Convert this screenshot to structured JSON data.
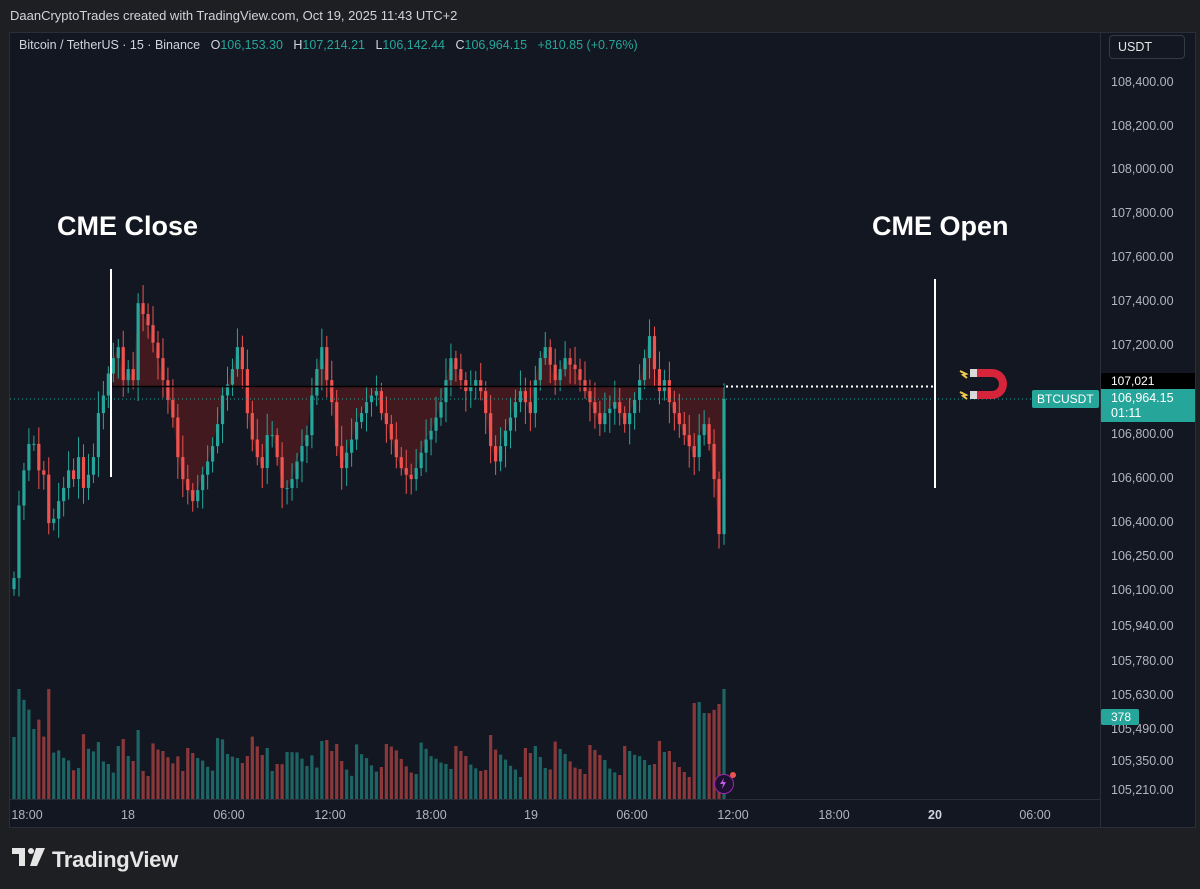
{
  "caption": "DaanCryptoTrades created with TradingView.com, Oct 19, 2025 11:43 UTC+2",
  "legend": {
    "symbol": "Bitcoin / TetherUS · 15 · Binance",
    "o_label": "O",
    "o": "106,153.30",
    "h_label": "H",
    "h": "107,214.21",
    "l_label": "L",
    "l": "106,142.44",
    "c_label": "C",
    "c": "106,964.15",
    "change": "+810.85 (+0.76%)"
  },
  "currency": "USDT",
  "annotations": {
    "left": "CME Close",
    "right": "CME Open"
  },
  "tags": {
    "cme_level": "107,021",
    "symbol_tag": "BTCUSDT",
    "last_price": "106,964.15",
    "countdown": "01:11",
    "volume": "378"
  },
  "footer": {
    "brand": "TradingView"
  },
  "colors": {
    "up": "#26a69a",
    "down": "#ef5350",
    "background": "#131722",
    "gap_fill": "#7a1c1c"
  },
  "icons": [
    "magnet-icon",
    "lightning-icon",
    "tradingview-logo-icon"
  ],
  "chart_data": {
    "type": "candlestick",
    "timeframe": "15",
    "y_ticks": [
      "108,400.00",
      "108,200.00",
      "108,000.00",
      "107,800.00",
      "107,600.00",
      "107,400.00",
      "107,200.00",
      "106,800.00",
      "106,600.00",
      "106,400.00",
      "106,250.00",
      "106,100.00",
      "105,940.00",
      "105,780.00",
      "105,630.00",
      "105,490.00",
      "105,350.00",
      "105,210.00"
    ],
    "x_ticks": [
      {
        "label": "18:00",
        "bold": false
      },
      {
        "label": "18",
        "bold": false
      },
      {
        "label": "06:00",
        "bold": false
      },
      {
        "label": "12:00",
        "bold": false
      },
      {
        "label": "18:00",
        "bold": false
      },
      {
        "label": "19",
        "bold": false
      },
      {
        "label": "06:00",
        "bold": false
      },
      {
        "label": "12:00",
        "bold": false
      },
      {
        "label": "18:00",
        "bold": false
      },
      {
        "label": "20",
        "bold": true
      },
      {
        "label": "06:00",
        "bold": false
      }
    ],
    "cme_gap_level": 107021,
    "last_price": 106964.15,
    "candle_count": 144,
    "closes": [
      106150,
      106480,
      106640,
      106760,
      106760,
      106640,
      106620,
      106400,
      106420,
      106500,
      106560,
      106640,
      106600,
      106700,
      106560,
      106620,
      106700,
      106900,
      106980,
      107080,
      107150,
      107200,
      107050,
      107100,
      107050,
      107400,
      107350,
      107300,
      107220,
      107150,
      107050,
      106960,
      106880,
      106700,
      106600,
      106550,
      106500,
      106550,
      106620,
      106680,
      106750,
      106850,
      106980,
      107030,
      107100,
      107200,
      107100,
      106900,
      106780,
      106700,
      106650,
      106800,
      106800,
      106700,
      106560,
      106560,
      106600,
      106680,
      106750,
      106800,
      106980,
      107100,
      107200,
      107050,
      106950,
      106750,
      106650,
      106720,
      106780,
      106860,
      106900,
      106950,
      106980,
      107000,
      106900,
      106850,
      106780,
      106700,
      106650,
      106620,
      106600,
      106650,
      106720,
      106780,
      106820,
      106880,
      106950,
      107050,
      107150,
      107100,
      107050,
      107000,
      107020,
      107050,
      107000,
      106900,
      106750,
      106680,
      106750,
      106820,
      106880,
      106950,
      107000,
      106950,
      106900,
      107050,
      107150,
      107200,
      107120,
      107050,
      107100,
      107150,
      107120,
      107100,
      107050,
      107000,
      106950,
      106900,
      106850,
      106900,
      106920,
      106950,
      106900,
      106850,
      106900,
      106960,
      107050,
      107150,
      107250,
      107100,
      107000,
      107050,
      106950,
      106900,
      106850,
      106800,
      106750,
      106700,
      106800,
      106850,
      106760,
      106600,
      106350,
      106964
    ]
  }
}
